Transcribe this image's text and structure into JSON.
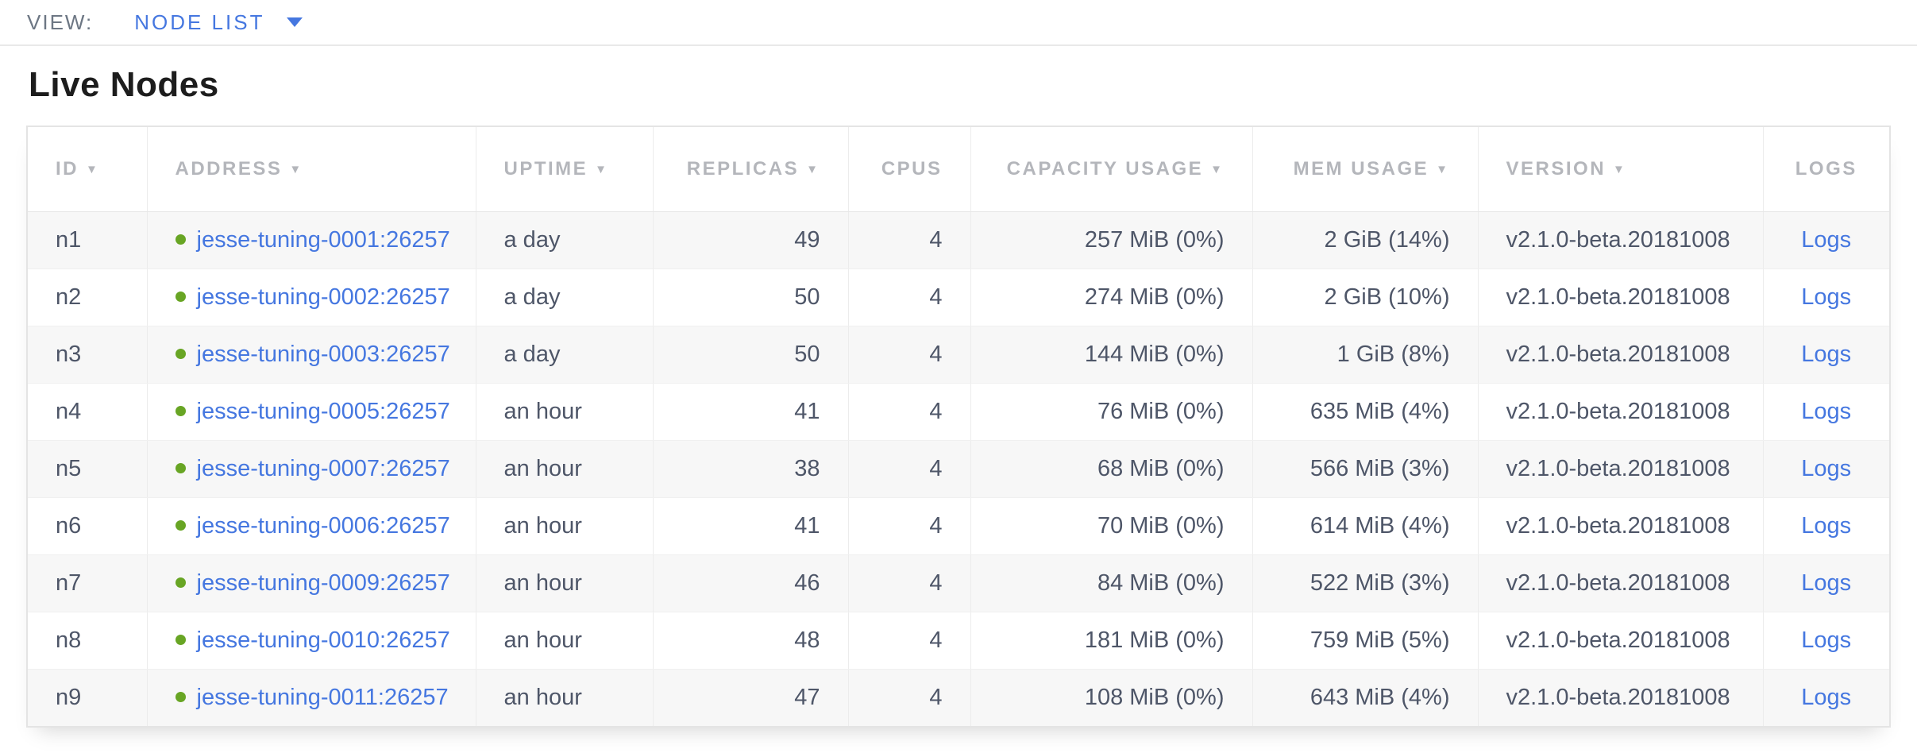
{
  "view_bar": {
    "label": "VIEW:",
    "selected_view": "NODE LIST"
  },
  "page": {
    "title": "Live Nodes"
  },
  "colors": {
    "accent_blue": "#4577e0",
    "status_green_live": "#68a524",
    "body_text": "#4e5668",
    "header_text": "#b4b6bb",
    "row_alt_background": "#f7f7f7"
  },
  "table": {
    "columns": [
      {
        "key": "id",
        "label": "ID",
        "sortable": true,
        "align": "left"
      },
      {
        "key": "address",
        "label": "ADDRESS",
        "sortable": true,
        "align": "left"
      },
      {
        "key": "uptime",
        "label": "UPTIME",
        "sortable": true,
        "align": "left"
      },
      {
        "key": "replicas",
        "label": "REPLICAS",
        "sortable": true,
        "align": "right"
      },
      {
        "key": "cpus",
        "label": "CPUS",
        "sortable": false,
        "align": "right"
      },
      {
        "key": "capacity_usage",
        "label": "CAPACITY USAGE",
        "sortable": true,
        "align": "right"
      },
      {
        "key": "mem_usage",
        "label": "MEM USAGE",
        "sortable": true,
        "align": "right"
      },
      {
        "key": "version",
        "label": "VERSION",
        "sortable": true,
        "align": "left"
      },
      {
        "key": "logs",
        "label": "LOGS",
        "sortable": false,
        "align": "center"
      }
    ],
    "rows": [
      {
        "id": "n1",
        "status": "live",
        "address": "jesse-tuning-0001:26257",
        "uptime": "a day",
        "replicas": "49",
        "cpus": "4",
        "capacity_usage": "257 MiB (0%)",
        "mem_usage": "2 GiB (14%)",
        "version": "v2.1.0-beta.20181008",
        "logs": "Logs"
      },
      {
        "id": "n2",
        "status": "live",
        "address": "jesse-tuning-0002:26257",
        "uptime": "a day",
        "replicas": "50",
        "cpus": "4",
        "capacity_usage": "274 MiB (0%)",
        "mem_usage": "2 GiB (10%)",
        "version": "v2.1.0-beta.20181008",
        "logs": "Logs"
      },
      {
        "id": "n3",
        "status": "live",
        "address": "jesse-tuning-0003:26257",
        "uptime": "a day",
        "replicas": "50",
        "cpus": "4",
        "capacity_usage": "144 MiB (0%)",
        "mem_usage": "1 GiB (8%)",
        "version": "v2.1.0-beta.20181008",
        "logs": "Logs"
      },
      {
        "id": "n4",
        "status": "live",
        "address": "jesse-tuning-0005:26257",
        "uptime": "an hour",
        "replicas": "41",
        "cpus": "4",
        "capacity_usage": "76 MiB (0%)",
        "mem_usage": "635 MiB (4%)",
        "version": "v2.1.0-beta.20181008",
        "logs": "Logs"
      },
      {
        "id": "n5",
        "status": "live",
        "address": "jesse-tuning-0007:26257",
        "uptime": "an hour",
        "replicas": "38",
        "cpus": "4",
        "capacity_usage": "68 MiB (0%)",
        "mem_usage": "566 MiB (3%)",
        "version": "v2.1.0-beta.20181008",
        "logs": "Logs"
      },
      {
        "id": "n6",
        "status": "live",
        "address": "jesse-tuning-0006:26257",
        "uptime": "an hour",
        "replicas": "41",
        "cpus": "4",
        "capacity_usage": "70 MiB (0%)",
        "mem_usage": "614 MiB (4%)",
        "version": "v2.1.0-beta.20181008",
        "logs": "Logs"
      },
      {
        "id": "n7",
        "status": "live",
        "address": "jesse-tuning-0009:26257",
        "uptime": "an hour",
        "replicas": "46",
        "cpus": "4",
        "capacity_usage": "84 MiB (0%)",
        "mem_usage": "522 MiB (3%)",
        "version": "v2.1.0-beta.20181008",
        "logs": "Logs"
      },
      {
        "id": "n8",
        "status": "live",
        "address": "jesse-tuning-0010:26257",
        "uptime": "an hour",
        "replicas": "48",
        "cpus": "4",
        "capacity_usage": "181 MiB (0%)",
        "mem_usage": "759 MiB (5%)",
        "version": "v2.1.0-beta.20181008",
        "logs": "Logs"
      },
      {
        "id": "n9",
        "status": "live",
        "address": "jesse-tuning-0011:26257",
        "uptime": "an hour",
        "replicas": "47",
        "cpus": "4",
        "capacity_usage": "108 MiB (0%)",
        "mem_usage": "643 MiB (4%)",
        "version": "v2.1.0-beta.20181008",
        "logs": "Logs"
      }
    ]
  }
}
